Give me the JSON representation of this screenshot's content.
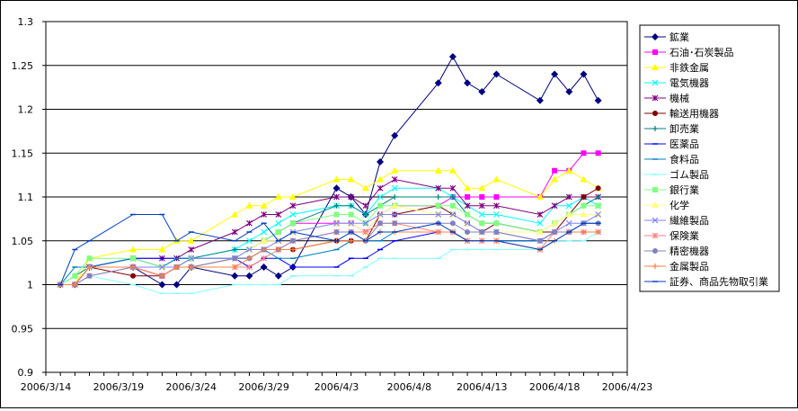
{
  "chart_data": {
    "type": "line",
    "title": "",
    "xlabel": "",
    "ylabel": "",
    "ylim": [
      0.9,
      1.3
    ],
    "yticks": [
      "0.9",
      "0.95",
      "1",
      "1.05",
      "1.1",
      "1.15",
      "1.2",
      "1.25",
      "1.3"
    ],
    "xlim": [
      "2006-03-14",
      "2006-04-23"
    ],
    "xtick_labels": [
      "2006/3/14",
      "2006/3/19",
      "2006/3/24",
      "2006/3/29",
      "2006/4/3",
      "2006/4/8",
      "2006/4/13",
      "2006/4/18",
      "2006/4/23"
    ],
    "grid": "horizontal",
    "legend_position": "right",
    "x": [
      "2006-03-15",
      "2006-03-16",
      "2006-03-17",
      "2006-03-20",
      "2006-03-22",
      "2006-03-23",
      "2006-03-24",
      "2006-03-27",
      "2006-03-28",
      "2006-03-29",
      "2006-03-30",
      "2006-03-31",
      "2006-04-03",
      "2006-04-04",
      "2006-04-05",
      "2006-04-06",
      "2006-04-07",
      "2006-04-10",
      "2006-04-11",
      "2006-04-12",
      "2006-04-13",
      "2006-04-14",
      "2006-04-17",
      "2006-04-18",
      "2006-04-19",
      "2006-04-20",
      "2006-04-21",
      "2006-04-22"
    ],
    "series": [
      {
        "name": "鉱業",
        "color": "#000080",
        "marker": "diamond",
        "values": [
          1.0,
          1.0,
          1.02,
          1.02,
          1.0,
          1.0,
          1.02,
          1.01,
          1.01,
          1.02,
          1.01,
          1.02,
          1.11,
          1.1,
          1.08,
          1.14,
          1.17,
          1.23,
          1.26,
          1.23,
          1.22,
          1.24,
          1.21,
          1.24,
          1.22,
          1.24,
          1.21,
          null
        ]
      },
      {
        "name": "石油･石炭製品",
        "color": "#ff00ff",
        "marker": "square",
        "values": [
          1.0,
          1.0,
          1.02,
          1.02,
          1.01,
          1.02,
          1.03,
          1.03,
          1.04,
          1.05,
          1.06,
          1.07,
          1.07,
          1.07,
          1.06,
          1.08,
          1.09,
          1.09,
          1.1,
          1.1,
          1.1,
          1.1,
          1.1,
          1.13,
          1.13,
          1.15,
          1.15,
          null
        ]
      },
      {
        "name": "非鉄金属",
        "color": "#ffff00",
        "marker": "triangle",
        "values": [
          1.0,
          1.0,
          1.03,
          1.04,
          1.04,
          1.05,
          1.05,
          1.08,
          1.09,
          1.09,
          1.1,
          1.1,
          1.12,
          1.12,
          1.11,
          1.12,
          1.13,
          1.13,
          1.13,
          1.11,
          1.11,
          1.12,
          1.1,
          1.12,
          1.13,
          1.12,
          1.11,
          null
        ]
      },
      {
        "name": "電気機器",
        "color": "#00ffff",
        "marker": "x",
        "values": [
          1.0,
          1.0,
          1.02,
          1.02,
          1.02,
          1.03,
          1.03,
          1.04,
          1.05,
          1.06,
          1.07,
          1.08,
          1.09,
          1.09,
          1.08,
          1.1,
          1.11,
          1.11,
          1.1,
          1.09,
          1.08,
          1.08,
          1.07,
          1.09,
          1.09,
          1.1,
          1.09,
          null
        ]
      },
      {
        "name": "機械",
        "color": "#800080",
        "marker": "star",
        "values": [
          1.0,
          1.0,
          1.02,
          1.03,
          1.03,
          1.03,
          1.04,
          1.06,
          1.07,
          1.08,
          1.08,
          1.09,
          1.1,
          1.1,
          1.09,
          1.11,
          1.12,
          1.11,
          1.11,
          1.09,
          1.09,
          1.09,
          1.08,
          1.09,
          1.1,
          1.1,
          1.1,
          null
        ]
      },
      {
        "name": "輸送用機器",
        "color": "#800000",
        "marker": "circle",
        "values": [
          1.0,
          1.0,
          1.02,
          1.01,
          1.01,
          1.02,
          1.02,
          1.03,
          1.03,
          1.04,
          1.04,
          1.04,
          1.05,
          1.05,
          1.05,
          1.08,
          1.08,
          1.09,
          1.08,
          1.07,
          1.06,
          1.07,
          1.06,
          1.06,
          1.08,
          1.1,
          1.11,
          null
        ]
      },
      {
        "name": "卸売業",
        "color": "#008080",
        "marker": "plus",
        "values": [
          1.0,
          1.01,
          1.02,
          1.03,
          1.02,
          1.02,
          1.03,
          1.04,
          1.04,
          1.05,
          1.06,
          1.07,
          1.09,
          1.09,
          1.08,
          1.09,
          1.1,
          1.1,
          1.1,
          1.08,
          1.07,
          1.07,
          1.06,
          1.07,
          1.08,
          1.09,
          1.1,
          null
        ]
      },
      {
        "name": "医薬品",
        "color": "#0000ff",
        "marker": "dash",
        "values": [
          1.0,
          1.0,
          1.02,
          1.03,
          1.03,
          1.03,
          1.03,
          1.03,
          1.02,
          1.03,
          1.03,
          1.02,
          1.02,
          1.03,
          1.03,
          1.04,
          1.05,
          1.06,
          1.06,
          1.05,
          1.05,
          1.05,
          1.05,
          1.06,
          1.06,
          1.06,
          1.06,
          null
        ]
      },
      {
        "name": "食料品",
        "color": "#0080c0",
        "marker": "dash",
        "values": [
          1.0,
          1.02,
          1.02,
          1.03,
          1.02,
          1.03,
          1.03,
          1.03,
          1.03,
          1.04,
          1.03,
          1.03,
          1.04,
          1.05,
          1.05,
          1.05,
          1.06,
          1.06,
          1.06,
          1.05,
          1.05,
          1.05,
          1.05,
          1.06,
          1.06,
          1.07,
          1.07,
          null
        ]
      },
      {
        "name": "ゴム製品",
        "color": "#80ffff",
        "marker": "dash",
        "values": [
          1.0,
          1.0,
          1.01,
          1.0,
          0.99,
          0.99,
          0.99,
          1.0,
          1.0,
          1.0,
          1.0,
          1.01,
          1.01,
          1.01,
          1.02,
          1.03,
          1.03,
          1.03,
          1.04,
          1.04,
          1.04,
          1.04,
          1.04,
          1.05,
          1.05,
          1.05,
          1.06,
          null
        ]
      },
      {
        "name": "銀行業",
        "color": "#80ff80",
        "marker": "square",
        "values": [
          1.0,
          1.01,
          1.03,
          1.03,
          1.02,
          1.02,
          1.03,
          1.03,
          1.04,
          1.05,
          1.06,
          1.07,
          1.08,
          1.08,
          1.07,
          1.09,
          1.09,
          1.09,
          1.09,
          1.08,
          1.07,
          1.07,
          1.06,
          1.07,
          1.08,
          1.09,
          1.09,
          null
        ]
      },
      {
        "name": "化学",
        "color": "#ffff80",
        "marker": "triangle",
        "values": [
          1.0,
          1.0,
          1.02,
          1.02,
          1.02,
          1.02,
          1.02,
          1.03,
          1.04,
          1.05,
          1.05,
          1.06,
          1.07,
          1.07,
          1.06,
          1.08,
          1.09,
          1.08,
          1.08,
          1.07,
          1.06,
          1.06,
          1.06,
          1.07,
          1.08,
          1.08,
          1.08,
          null
        ]
      },
      {
        "name": "繊維製品",
        "color": "#8080ff",
        "marker": "x",
        "values": [
          1.0,
          1.0,
          1.02,
          1.02,
          1.02,
          1.02,
          1.03,
          1.03,
          1.04,
          1.04,
          1.05,
          1.06,
          1.07,
          1.07,
          1.07,
          1.08,
          1.08,
          1.08,
          1.08,
          1.07,
          1.06,
          1.06,
          1.05,
          1.06,
          1.07,
          1.07,
          1.08,
          null
        ]
      },
      {
        "name": "保険業",
        "color": "#ff8080",
        "marker": "star",
        "values": [
          1.0,
          1.0,
          1.01,
          1.02,
          1.01,
          1.02,
          1.02,
          1.02,
          1.02,
          1.03,
          1.04,
          1.05,
          1.06,
          1.06,
          1.06,
          1.07,
          1.07,
          1.06,
          1.06,
          1.05,
          1.05,
          1.05,
          1.04,
          1.06,
          1.06,
          1.06,
          1.06,
          null
        ]
      },
      {
        "name": "精密機器",
        "color": "#8080c0",
        "marker": "circle",
        "values": [
          1.0,
          1.0,
          1.01,
          1.02,
          1.01,
          1.02,
          1.02,
          1.03,
          1.03,
          1.04,
          1.04,
          1.05,
          1.06,
          1.06,
          1.05,
          1.07,
          1.07,
          1.07,
          1.07,
          1.06,
          1.06,
          1.06,
          1.05,
          1.06,
          1.06,
          1.07,
          1.07,
          null
        ]
      },
      {
        "name": "金属製品",
        "color": "#ff8040",
        "marker": "plus",
        "values": [
          1.0,
          1.0,
          1.02,
          1.02,
          1.01,
          1.02,
          1.02,
          1.02,
          1.03,
          1.04,
          1.04,
          1.04,
          1.05,
          1.05,
          1.05,
          1.06,
          1.06,
          1.06,
          1.06,
          1.05,
          1.05,
          1.05,
          1.04,
          1.05,
          1.06,
          1.06,
          1.06,
          null
        ]
      },
      {
        "name": "証券、商品先物取引業",
        "color": "#0040c0",
        "marker": "dash",
        "values": [
          1.0,
          1.04,
          1.05,
          1.08,
          1.08,
          1.05,
          1.06,
          1.05,
          1.06,
          1.07,
          1.05,
          1.06,
          1.05,
          1.06,
          1.05,
          1.06,
          1.06,
          1.07,
          1.06,
          1.05,
          1.05,
          1.05,
          1.04,
          1.05,
          1.06,
          1.07,
          1.07,
          null
        ]
      }
    ]
  }
}
